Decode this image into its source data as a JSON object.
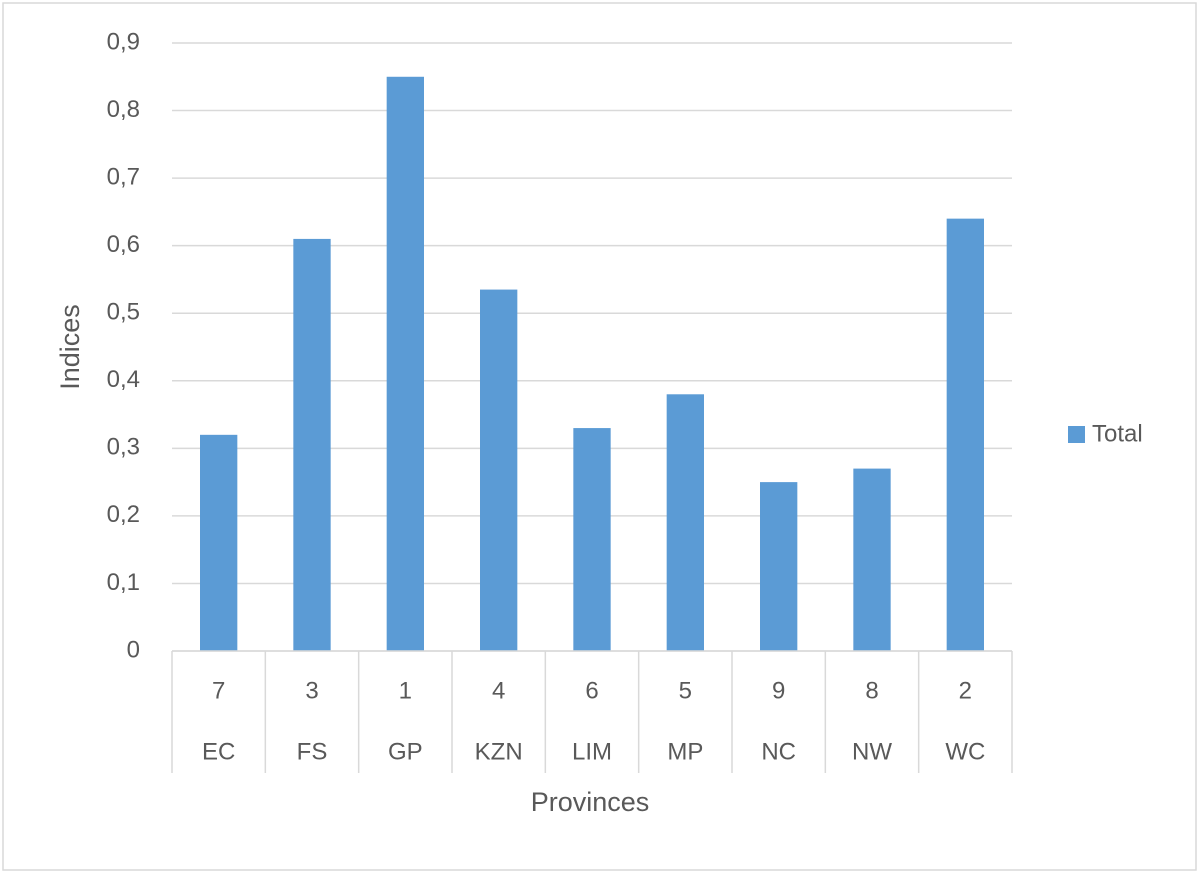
{
  "chart_data": {
    "type": "bar",
    "x_label": "Provinces",
    "y_label": "Indices",
    "categories": [
      "EC",
      "FS",
      "GP",
      "KZN",
      "LIM",
      "MP",
      "NC",
      "NW",
      "WC"
    ],
    "category_ranks": [
      "7",
      "3",
      "1",
      "4",
      "6",
      "5",
      "9",
      "8",
      "2"
    ],
    "series": [
      {
        "name": "Total",
        "color": "#5b9bd5",
        "values": [
          0.32,
          0.61,
          0.85,
          0.535,
          0.33,
          0.38,
          0.25,
          0.27,
          0.64
        ]
      }
    ],
    "ylim": [
      0,
      0.9
    ],
    "yticks": [
      0,
      {
        "value": 0.1,
        "label": "0,1"
      },
      {
        "value": 0.2,
        "label": "0,2"
      },
      {
        "value": 0.3,
        "label": "0,3"
      },
      {
        "value": 0.4,
        "label": "0,4"
      },
      {
        "value": 0.5,
        "label": "0,5"
      },
      {
        "value": 0.6,
        "label": "0,6"
      },
      {
        "value": 0.7,
        "label": "0,7"
      },
      {
        "value": 0.8,
        "label": "0,8"
      },
      {
        "value": 0.9,
        "label": "0,9"
      }
    ],
    "grid": true,
    "legend": "right"
  }
}
